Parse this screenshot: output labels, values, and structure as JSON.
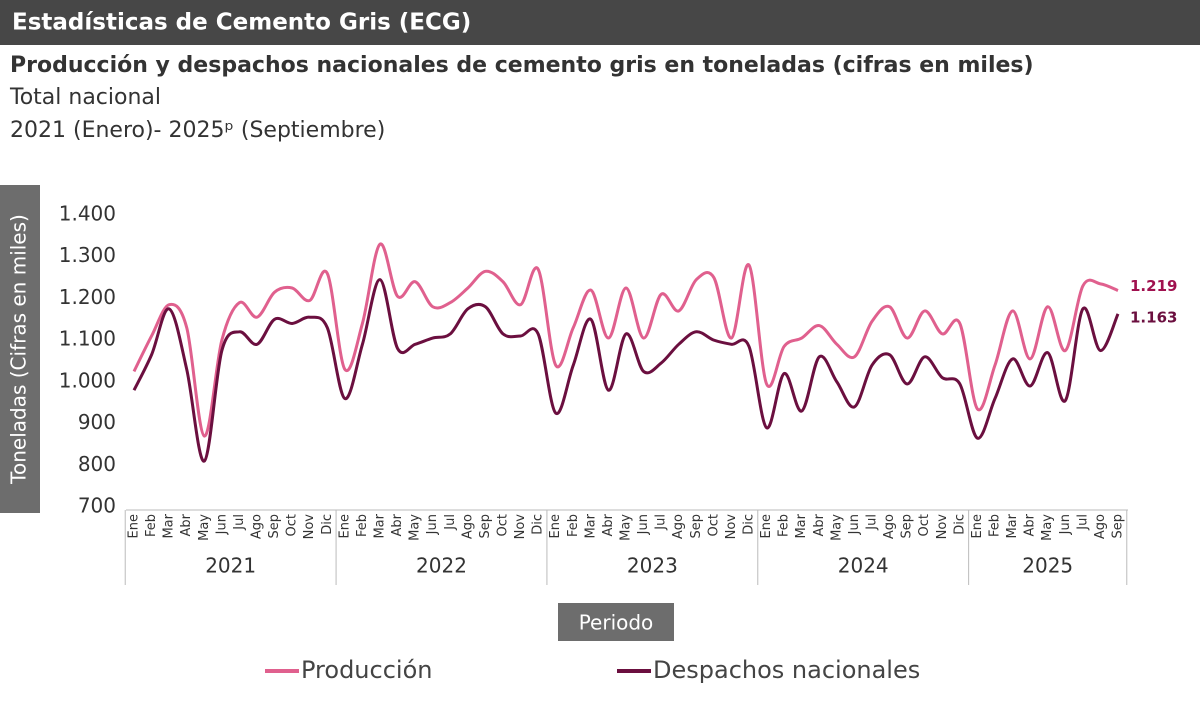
{
  "header": "Estadísticas de Cemento Gris (ECG)",
  "chart_data": {
    "type": "line",
    "title": "Producción y despachos nacionales de cemento gris en toneladas (cifras en miles)",
    "subtitle": "Total nacional",
    "period": "2021 (Enero)- 2025ᵖ (Septiembre)",
    "y_label": "Toneladas (Cifras en miles)",
    "x_label": "Periodo",
    "years": [
      "2021",
      "2022",
      "2023",
      "2024",
      "2025"
    ],
    "categories": [
      "Ene",
      "Feb",
      "Mar",
      "Abr",
      "May",
      "Jun",
      "Jul",
      "Ago",
      "Sep",
      "Oct",
      "Nov",
      "Dic",
      "Ene",
      "Feb",
      "Mar",
      "Abr",
      "May",
      "Jun",
      "Jul",
      "Ago",
      "Sep",
      "Oct",
      "Nov",
      "Dic",
      "Ene",
      "Feb",
      "Mar",
      "Abr",
      "May",
      "Jun",
      "Jul",
      "Ago",
      "Sep",
      "Oct",
      "Nov",
      "Dic",
      "Ene",
      "Feb",
      "Mar",
      "Abr",
      "May",
      "Jun",
      "Jul",
      "Ago",
      "Sep",
      "Oct",
      "Nov",
      "Dic",
      "Ene",
      "Feb",
      "Mar",
      "Abr",
      "May",
      "Jun",
      "Jul",
      "Ago",
      "Sep"
    ],
    "series": [
      {
        "name": "Producción",
        "color": "#e0608e",
        "values": [
          1025,
          1110,
          1185,
          1130,
          870,
          1100,
          1190,
          1155,
          1215,
          1225,
          1195,
          1260,
          1030,
          1140,
          1330,
          1205,
          1240,
          1180,
          1190,
          1225,
          1265,
          1240,
          1185,
          1270,
          1040,
          1130,
          1220,
          1105,
          1225,
          1105,
          1210,
          1170,
          1245,
          1250,
          1105,
          1280,
          995,
          1085,
          1105,
          1135,
          1090,
          1060,
          1145,
          1180,
          1105,
          1170,
          1115,
          1140,
          935,
          1040,
          1170,
          1055,
          1180,
          1075,
          1230,
          1235,
          1219
        ],
        "value_labels": [
          null,
          null,
          null,
          null,
          null,
          null,
          null,
          null,
          null,
          null,
          null,
          null,
          null,
          null,
          null,
          null,
          null,
          null,
          null,
          null,
          null,
          null,
          null,
          null,
          null,
          null,
          null,
          null,
          null,
          null,
          null,
          null,
          null,
          null,
          null,
          null,
          null,
          null,
          null,
          null,
          null,
          null,
          null,
          null,
          null,
          null,
          null,
          null,
          null,
          null,
          null,
          null,
          null,
          null,
          null,
          null,
          "1.219"
        ],
        "label_color": "#a0114f"
      },
      {
        "name": "Despachos nacionales",
        "color": "#6b0f3f",
        "values": [
          980,
          1065,
          1175,
          1030,
          810,
          1075,
          1120,
          1090,
          1150,
          1140,
          1155,
          1130,
          960,
          1090,
          1245,
          1080,
          1090,
          1105,
          1115,
          1175,
          1180,
          1115,
          1110,
          1115,
          925,
          1040,
          1150,
          980,
          1115,
          1025,
          1045,
          1090,
          1120,
          1100,
          1090,
          1085,
          890,
          1020,
          930,
          1060,
          1000,
          940,
          1040,
          1065,
          995,
          1060,
          1010,
          995,
          865,
          960,
          1055,
          990,
          1070,
          955,
          1175,
          1075,
          1163
        ],
        "value_labels": [
          null,
          null,
          null,
          null,
          null,
          null,
          null,
          null,
          null,
          null,
          null,
          null,
          null,
          null,
          null,
          null,
          null,
          null,
          null,
          null,
          null,
          null,
          null,
          null,
          null,
          null,
          null,
          null,
          null,
          null,
          null,
          null,
          null,
          null,
          null,
          null,
          null,
          null,
          null,
          null,
          null,
          null,
          null,
          null,
          null,
          null,
          null,
          null,
          null,
          null,
          null,
          null,
          null,
          null,
          null,
          null,
          "1.163"
        ],
        "label_color": "#6b0f3f"
      }
    ],
    "ylim": [
      700,
      1400
    ],
    "yticks": [
      700,
      800,
      900,
      {
        "value": 1000,
        "label": "1.000"
      },
      {
        "value": 1100,
        "label": "1.100"
      },
      {
        "value": 1200,
        "label": "1.200"
      },
      {
        "value": 1300,
        "label": "1.300"
      },
      {
        "value": 1400,
        "label": "1.400"
      }
    ],
    "grid": false,
    "legend": "bottom"
  }
}
